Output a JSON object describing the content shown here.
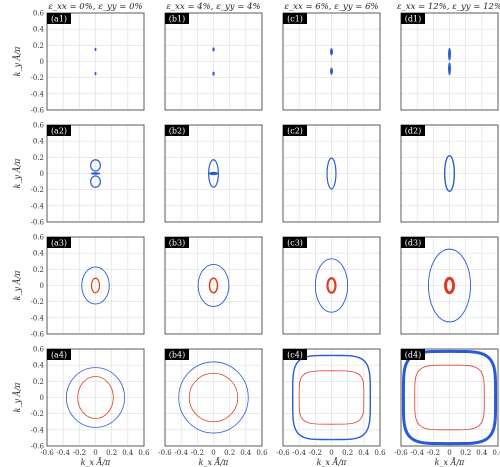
{
  "chart_data": {
    "type": "scatter",
    "description_layout": "4x4 grid of panels; columns = strain condition, rows = energy level",
    "column_titles": [
      "ε_xx = 0%, ε_yy = 0%",
      "ε_xx = 4%, ε_yy = 4%",
      "ε_xx = 6%, ε_yy = 6%",
      "ε_xx = 12%, ε_yy = 12%"
    ],
    "xlabel": "k_x Å/π",
    "ylabel": "k_y Å/π",
    "xlim": [
      -0.6,
      0.6
    ],
    "ylim": [
      -0.6,
      0.6
    ],
    "ticks": [
      -0.6,
      -0.4,
      -0.2,
      0,
      0.2,
      0.4,
      0.6
    ],
    "tick_labels": [
      "-0.6",
      "-0.4",
      "-0.2",
      "0",
      "0.2",
      "0.4",
      "0.6"
    ],
    "grid": true,
    "colors": {
      "blue": "#2a5bd7",
      "red": "#e03a22",
      "grid": "#dcdcdc",
      "axis": "#333333",
      "label_bg": "#000000",
      "label_text": "#ffffff"
    },
    "panels": [
      {
        "label": "(a1)",
        "row": 0,
        "col": 0,
        "contours": [
          {
            "color": "blue",
            "kind": "dot",
            "cx": 0,
            "cy": 0.15,
            "rx": 0.012,
            "ry": 0.02
          },
          {
            "color": "blue",
            "kind": "dot",
            "cx": 0,
            "cy": -0.15,
            "rx": 0.012,
            "ry": 0.02
          }
        ]
      },
      {
        "label": "(b1)",
        "row": 0,
        "col": 1,
        "contours": [
          {
            "color": "blue",
            "kind": "dot",
            "cx": 0,
            "cy": 0.15,
            "rx": 0.014,
            "ry": 0.025
          },
          {
            "color": "blue",
            "kind": "dot",
            "cx": 0,
            "cy": -0.15,
            "rx": 0.014,
            "ry": 0.025
          }
        ]
      },
      {
        "label": "(c1)",
        "row": 0,
        "col": 2,
        "contours": [
          {
            "color": "blue",
            "kind": "dot",
            "cx": 0,
            "cy": 0.12,
            "rx": 0.018,
            "ry": 0.045
          },
          {
            "color": "blue",
            "kind": "dot",
            "cx": 0,
            "cy": -0.12,
            "rx": 0.018,
            "ry": 0.045
          }
        ]
      },
      {
        "label": "(d1)",
        "row": 0,
        "col": 3,
        "contours": [
          {
            "color": "blue",
            "kind": "dot",
            "cx": 0,
            "cy": 0.09,
            "rx": 0.018,
            "ry": 0.08
          },
          {
            "color": "blue",
            "kind": "dot",
            "cx": 0,
            "cy": -0.09,
            "rx": 0.018,
            "ry": 0.08
          }
        ]
      },
      {
        "label": "(a2)",
        "row": 1,
        "col": 0,
        "contours": [
          {
            "color": "blue",
            "kind": "lobe",
            "cx": 0,
            "cy": 0.1,
            "rx": 0.06,
            "ry": 0.07
          },
          {
            "color": "blue",
            "kind": "lobe",
            "cx": 0,
            "cy": -0.1,
            "rx": 0.06,
            "ry": 0.07
          },
          {
            "color": "blue",
            "kind": "bar",
            "cx": 0,
            "cy": 0.0,
            "rx": 0.06,
            "ry": 0.015
          }
        ]
      },
      {
        "label": "(b2)",
        "row": 1,
        "col": 1,
        "contours": [
          {
            "color": "blue",
            "kind": "ring",
            "cx": 0,
            "cy": 0,
            "rx": 0.06,
            "ry": 0.17,
            "w": 1.2
          },
          {
            "color": "blue",
            "kind": "bar",
            "cx": 0,
            "cy": 0.0,
            "rx": 0.06,
            "ry": 0.02
          }
        ]
      },
      {
        "label": "(c2)",
        "row": 1,
        "col": 2,
        "contours": [
          {
            "color": "blue",
            "kind": "ring",
            "cx": 0,
            "cy": 0,
            "rx": 0.055,
            "ry": 0.19,
            "w": 1.2
          }
        ]
      },
      {
        "label": "(d2)",
        "row": 1,
        "col": 3,
        "contours": [
          {
            "color": "blue",
            "kind": "ring",
            "cx": 0,
            "cy": 0,
            "rx": 0.06,
            "ry": 0.22,
            "w": 1.4
          }
        ]
      },
      {
        "label": "(a3)",
        "row": 2,
        "col": 0,
        "contours": [
          {
            "color": "blue",
            "kind": "ring",
            "cx": 0,
            "cy": 0,
            "rx": 0.17,
            "ry": 0.23,
            "w": 0.9
          },
          {
            "color": "red",
            "kind": "ring",
            "cx": 0,
            "cy": 0,
            "rx": 0.05,
            "ry": 0.09,
            "w": 1.2
          }
        ]
      },
      {
        "label": "(b3)",
        "row": 2,
        "col": 1,
        "contours": [
          {
            "color": "blue",
            "kind": "ring",
            "cx": 0,
            "cy": 0,
            "rx": 0.19,
            "ry": 0.26,
            "w": 0.9
          },
          {
            "color": "red",
            "kind": "ring",
            "cx": 0,
            "cy": 0,
            "rx": 0.05,
            "ry": 0.09,
            "w": 1.5
          }
        ]
      },
      {
        "label": "(c3)",
        "row": 2,
        "col": 2,
        "contours": [
          {
            "color": "blue",
            "kind": "ring",
            "cx": 0,
            "cy": 0,
            "rx": 0.2,
            "ry": 0.33,
            "w": 0.9
          },
          {
            "color": "red",
            "kind": "ring",
            "cx": 0,
            "cy": 0,
            "rx": 0.05,
            "ry": 0.09,
            "w": 2.2
          }
        ]
      },
      {
        "label": "(d3)",
        "row": 2,
        "col": 3,
        "contours": [
          {
            "color": "blue",
            "kind": "ring",
            "cx": 0,
            "cy": 0,
            "rx": 0.26,
            "ry": 0.45,
            "w": 0.9
          },
          {
            "color": "red",
            "kind": "ring",
            "cx": 0,
            "cy": 0,
            "rx": 0.05,
            "ry": 0.09,
            "w": 3
          }
        ]
      },
      {
        "label": "(a4)",
        "row": 3,
        "col": 0,
        "contours": [
          {
            "color": "blue",
            "kind": "ring",
            "cx": 0,
            "cy": 0,
            "rx": 0.36,
            "ry": 0.37,
            "w": 0.8
          },
          {
            "color": "red",
            "kind": "ring",
            "cx": 0,
            "cy": 0,
            "rx": 0.22,
            "ry": 0.26,
            "w": 0.8
          }
        ]
      },
      {
        "label": "(b4)",
        "row": 3,
        "col": 1,
        "contours": [
          {
            "color": "blue",
            "kind": "ring",
            "cx": 0,
            "cy": 0,
            "rx": 0.43,
            "ry": 0.44,
            "w": 0.8
          },
          {
            "color": "red",
            "kind": "ring",
            "cx": 0,
            "cy": 0,
            "rx": 0.3,
            "ry": 0.3,
            "w": 0.8
          }
        ]
      },
      {
        "label": "(c4)",
        "row": 3,
        "col": 2,
        "contours": [
          {
            "color": "blue",
            "kind": "squircle",
            "cx": 0,
            "cy": 0,
            "rx": 0.48,
            "ry": 0.52,
            "w": 1.4
          },
          {
            "color": "red",
            "kind": "squircle",
            "cx": 0,
            "cy": 0,
            "rx": 0.4,
            "ry": 0.33,
            "w": 0.8
          }
        ]
      },
      {
        "label": "(d4)",
        "row": 3,
        "col": 3,
        "contours": [
          {
            "color": "blue",
            "kind": "squircle",
            "cx": 0,
            "cy": 0,
            "rx": 0.57,
            "ry": 0.57,
            "w": 3
          },
          {
            "color": "red",
            "kind": "squircle",
            "cx": 0,
            "cy": 0,
            "rx": 0.43,
            "ry": 0.4,
            "w": 0.8
          }
        ]
      }
    ]
  }
}
